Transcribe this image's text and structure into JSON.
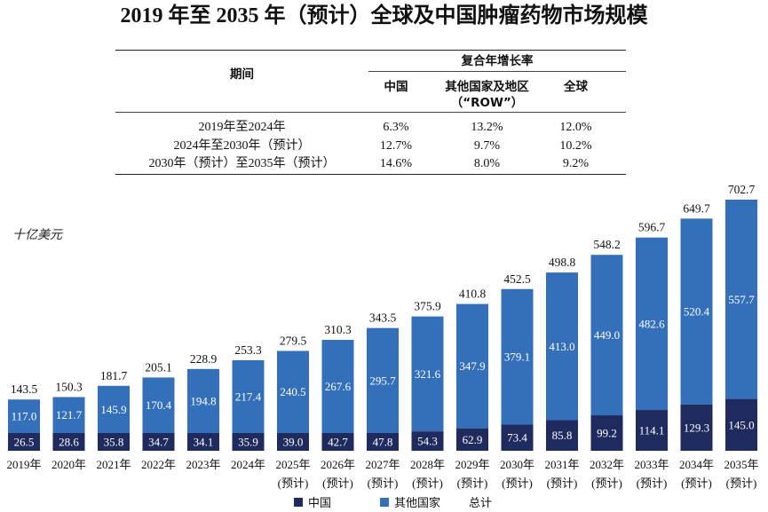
{
  "title": "2019 年至 2035 年（预计）全球及中国肿瘤药物市场规模",
  "table": {
    "header_period": "期间",
    "header_cagr": "复合年增长率",
    "columns": [
      {
        "label": "中国"
      },
      {
        "label": "其他国家及地区",
        "label2": "（“ROW”）"
      },
      {
        "label": "全球"
      }
    ],
    "rows": [
      {
        "period": "2019年至2024年",
        "values": [
          "6.3%",
          "13.2%",
          "12.0%"
        ]
      },
      {
        "period": "2024年至2030年（预计）",
        "values": [
          "12.7%",
          "9.7%",
          "10.2%"
        ]
      },
      {
        "period": "2030年（预计）至2035年（预计）",
        "values": [
          "14.6%",
          "8.0%",
          "9.2%"
        ]
      }
    ]
  },
  "chart_data": {
    "type": "bar",
    "stacked": true,
    "unit_label": "十亿美元",
    "categories": [
      "2019年",
      "2020年",
      "2021年",
      "2022年",
      "2023年",
      "2024年",
      "2025年",
      "2026年",
      "2027年",
      "2028年",
      "2029年",
      "2030年",
      "2031年",
      "2032年",
      "2033年",
      "2034年",
      "2035年"
    ],
    "category_sublabels": [
      "",
      "",
      "",
      "",
      "",
      "",
      "(预计)",
      "(预计)",
      "(预计)",
      "(预计)",
      "(预计)",
      "(预计)",
      "(预计)",
      "(预计)",
      "(预计)",
      "(预计)",
      "(预计)"
    ],
    "series": [
      {
        "name": "中国",
        "color": "#1f2b5e",
        "values": [
          26.5,
          28.6,
          35.8,
          34.7,
          34.1,
          35.9,
          39.0,
          42.7,
          47.8,
          54.3,
          62.9,
          73.4,
          85.8,
          99.2,
          114.1,
          129.3,
          145.0
        ]
      },
      {
        "name": "其他国家",
        "color": "#3370b9",
        "values": [
          117.0,
          121.7,
          145.9,
          170.4,
          194.8,
          217.4,
          240.5,
          267.6,
          295.7,
          321.6,
          347.9,
          379.1,
          413.0,
          449.0,
          482.6,
          520.4,
          557.7
        ]
      }
    ],
    "totals": [
      143.5,
      150.3,
      181.7,
      205.1,
      228.9,
      253.3,
      279.5,
      310.3,
      343.5,
      375.9,
      410.8,
      452.5,
      498.8,
      548.2,
      596.7,
      649.7,
      702.7
    ],
    "totals_label": "总计",
    "ylim": [
      0,
      702.7
    ],
    "grid": false,
    "legend_position": "bottom"
  }
}
